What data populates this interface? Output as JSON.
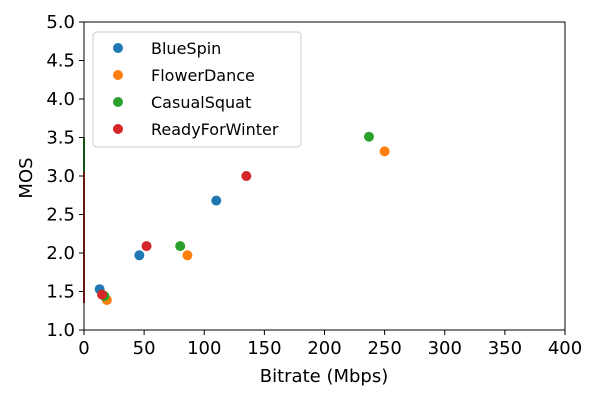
{
  "chart_data": {
    "type": "scatter",
    "title": "",
    "xlabel": "Bitrate (Mbps)",
    "ylabel": "MOS",
    "xlim": [
      0,
      400
    ],
    "ylim": [
      1.0,
      5.0
    ],
    "x_ticks": [
      "0",
      "50",
      "100",
      "150",
      "200",
      "250",
      "300",
      "350",
      "400"
    ],
    "y_ticks": [
      "1.0",
      "1.5",
      "2.0",
      "2.5",
      "3.0",
      "3.5",
      "4.0",
      "4.5",
      "5.0"
    ],
    "grid": false,
    "legend_position": "top-left",
    "series": [
      {
        "name": "BlueSpin",
        "color": "#1f77b4",
        "points": [
          [
            13,
            1.53
          ],
          [
            46,
            1.97
          ],
          [
            110,
            2.68
          ]
        ]
      },
      {
        "name": "FlowerDance",
        "color": "#ff7f0e",
        "points": [
          [
            19,
            1.39
          ],
          [
            86,
            1.97
          ],
          [
            250,
            3.32
          ]
        ]
      },
      {
        "name": "CasualSquat",
        "color": "#2ca02c",
        "points": [
          [
            17,
            1.44
          ],
          [
            80,
            2.09
          ],
          [
            237,
            3.51
          ]
        ]
      },
      {
        "name": "ReadyForWinter",
        "color": "#d62728",
        "points": [
          [
            15,
            1.46
          ],
          [
            52,
            2.09
          ],
          [
            135,
            3.0
          ]
        ]
      }
    ],
    "edge_lines": [
      {
        "series": "CasualSquat",
        "color": "#2ca02c",
        "y_range": [
          2.9,
          3.5
        ]
      },
      {
        "series": "ReadyForWinter",
        "color": "#d62728",
        "y_range": [
          1.35,
          3.05
        ]
      }
    ]
  }
}
